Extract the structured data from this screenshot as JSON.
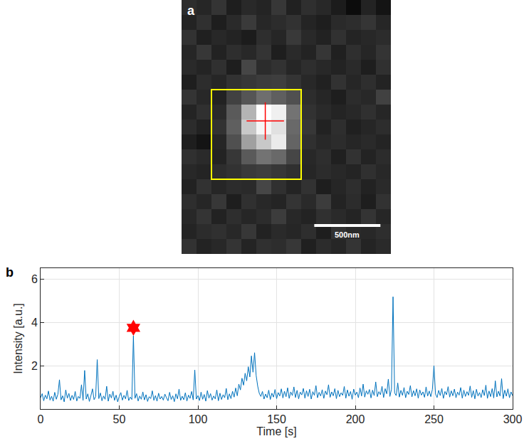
{
  "chart_data": [
    {
      "type": "heatmap",
      "panel": "a",
      "tick_labels": false,
      "zlim": [
        0,
        255
      ],
      "cells": [
        [
          45,
          38,
          52,
          30,
          41,
          36,
          55,
          33,
          47,
          40,
          28,
          12,
          35,
          20
        ],
        [
          35,
          48,
          30,
          42,
          58,
          39,
          44,
          50,
          36,
          30,
          42,
          45,
          53,
          38
        ],
        [
          50,
          32,
          40,
          35,
          28,
          46,
          38,
          57,
          41,
          34,
          49,
          36,
          40,
          44
        ],
        [
          38,
          55,
          34,
          46,
          40,
          52,
          30,
          42,
          35,
          54,
          32,
          47,
          38,
          52
        ],
        [
          42,
          36,
          48,
          30,
          70,
          44,
          50,
          38,
          46,
          40,
          35,
          42,
          30,
          48
        ],
        [
          30,
          45,
          38,
          50,
          55,
          60,
          62,
          52,
          40,
          33,
          50,
          38,
          46,
          35
        ],
        [
          52,
          40,
          34,
          65,
          85,
          110,
          95,
          80,
          45,
          38,
          30,
          44,
          40,
          65
        ],
        [
          36,
          48,
          42,
          90,
          180,
          255,
          240,
          115,
          50,
          42,
          36,
          40,
          48,
          38
        ],
        [
          44,
          34,
          50,
          95,
          200,
          245,
          225,
          105,
          55,
          34,
          46,
          32,
          38,
          45
        ],
        [
          30,
          20,
          38,
          80,
          160,
          200,
          235,
          100,
          48,
          40,
          44,
          38,
          42,
          36
        ],
        [
          48,
          42,
          35,
          55,
          90,
          115,
          105,
          70,
          40,
          46,
          32,
          50,
          35,
          44
        ],
        [
          40,
          36,
          45,
          50,
          58,
          62,
          55,
          48,
          38,
          44,
          40,
          36,
          48,
          40
        ],
        [
          34,
          50,
          38,
          44,
          42,
          70,
          48,
          36,
          50,
          30,
          38,
          46,
          34,
          42
        ],
        [
          46,
          38,
          55,
          30,
          48,
          40,
          36,
          52,
          42,
          60,
          35,
          44,
          30,
          50
        ],
        [
          40,
          52,
          34,
          46,
          38,
          44,
          60,
          40,
          35,
          48,
          42,
          36,
          52,
          38
        ],
        [
          36,
          44,
          48,
          40,
          55,
          34,
          42,
          38,
          46,
          30,
          50,
          42,
          40,
          46
        ],
        [
          50,
          35,
          40,
          52,
          36,
          48,
          45,
          55,
          32,
          44,
          38,
          52,
          36,
          42
        ]
      ],
      "roi": [
        1.5,
        7.5,
        5.5,
        11.5
      ],
      "localization": [
        5.1,
        7.6
      ],
      "pixel_size": 113,
      "scale_bar": {
        "value": 500,
        "label": "500nm"
      }
    },
    {
      "type": "line",
      "panel": "b",
      "x_label": "Time [s]",
      "y_label": "Intensity [a.u.]",
      "color": "#0072bd",
      "grid": true,
      "xlim": [
        0,
        300
      ],
      "xticks": [
        0,
        50,
        100,
        150,
        200,
        250,
        300
      ],
      "ylim": [
        0,
        6.5
      ],
      "yticks": [
        2,
        4,
        6
      ],
      "x": [
        0,
        1,
        2,
        3,
        4,
        5,
        6,
        7,
        8,
        9,
        10,
        11,
        12,
        13,
        14,
        15,
        16,
        17,
        18,
        19,
        20,
        21,
        22,
        23,
        24,
        25,
        26,
        27,
        28,
        29,
        30,
        31,
        32,
        33,
        34,
        35,
        36,
        37,
        38,
        39,
        40,
        41,
        42,
        43,
        44,
        45,
        46,
        47,
        48,
        49,
        50,
        51,
        52,
        53,
        54,
        55,
        56,
        57,
        58,
        59,
        60,
        61,
        62,
        63,
        64,
        65,
        66,
        67,
        68,
        69,
        70,
        71,
        72,
        73,
        74,
        75,
        76,
        77,
        78,
        79,
        80,
        81,
        82,
        83,
        84,
        85,
        86,
        87,
        88,
        89,
        90,
        91,
        92,
        93,
        94,
        95,
        96,
        97,
        98,
        99,
        100,
        101,
        102,
        103,
        104,
        105,
        106,
        107,
        108,
        109,
        110,
        111,
        112,
        113,
        114,
        115,
        116,
        117,
        118,
        119,
        120,
        121,
        122,
        123,
        124,
        125,
        126,
        127,
        128,
        129,
        130,
        131,
        132,
        133,
        134,
        135,
        136,
        137,
        138,
        139,
        140,
        141,
        142,
        143,
        144,
        145,
        146,
        147,
        148,
        149,
        150,
        151,
        152,
        153,
        154,
        155,
        156,
        157,
        158,
        159,
        160,
        161,
        162,
        163,
        164,
        165,
        166,
        167,
        168,
        169,
        170,
        171,
        172,
        173,
        174,
        175,
        176,
        177,
        178,
        179,
        180,
        181,
        182,
        183,
        184,
        185,
        186,
        187,
        188,
        189,
        190,
        191,
        192,
        193,
        194,
        195,
        196,
        197,
        198,
        199,
        200,
        201,
        202,
        203,
        204,
        205,
        206,
        207,
        208,
        209,
        210,
        211,
        212,
        213,
        214,
        215,
        216,
        217,
        218,
        219,
        220,
        221,
        222,
        223,
        224,
        225,
        226,
        227,
        228,
        229,
        230,
        231,
        232,
        233,
        234,
        235,
        236,
        237,
        238,
        239,
        240,
        241,
        242,
        243,
        244,
        245,
        246,
        247,
        248,
        249,
        250,
        251,
        252,
        253,
        254,
        255,
        256,
        257,
        258,
        259,
        260,
        261,
        262,
        263,
        264,
        265,
        266,
        267,
        268,
        269,
        270,
        271,
        272,
        273,
        274,
        275,
        276,
        277,
        278,
        279,
        280,
        281,
        282,
        283,
        284,
        285,
        286,
        287,
        288,
        289,
        290,
        291,
        292,
        293,
        294,
        295,
        296,
        297,
        298,
        299,
        300
      ],
      "values": [
        0.52,
        0.71,
        0.38,
        0.64,
        0.47,
        0.83,
        0.41,
        0.59,
        0.36,
        0.77,
        0.45,
        0.68,
        1.35,
        0.42,
        0.61,
        0.33,
        0.88,
        0.5,
        0.72,
        0.39,
        0.63,
        0.44,
        0.81,
        0.37,
        0.58,
        0.49,
        1.12,
        0.4,
        1.78,
        0.46,
        0.7,
        0.35,
        0.62,
        0.93,
        0.43,
        0.57,
        2.28,
        0.48,
        0.74,
        0.38,
        0.6,
        0.45,
        1.05,
        0.36,
        0.69,
        0.51,
        0.82,
        0.4,
        0.64,
        0.33,
        0.58,
        0.76,
        0.41,
        0.63,
        0.47,
        0.86,
        0.39,
        0.55,
        0.44,
        3.38,
        0.49,
        0.71,
        0.37,
        0.6,
        0.45,
        0.79,
        0.42,
        0.66,
        0.35,
        0.57,
        0.48,
        0.84,
        0.4,
        0.62,
        0.36,
        0.73,
        0.46,
        0.58,
        0.41,
        0.69,
        0.52,
        0.38,
        0.77,
        0.44,
        0.61,
        0.34,
        0.7,
        0.47,
        0.92,
        0.4,
        0.59,
        0.43,
        0.75,
        0.37,
        0.64,
        0.49,
        0.81,
        0.42,
        1.8,
        0.46,
        0.62,
        0.39,
        0.78,
        0.45,
        0.67,
        0.36,
        0.85,
        0.5,
        0.71,
        0.41,
        0.6,
        0.47,
        0.88,
        0.38,
        0.73,
        0.44,
        0.66,
        0.52,
        0.95,
        0.43,
        0.7,
        0.48,
        0.82,
        0.55,
        0.97,
        0.61,
        1.15,
        0.88,
        1.42,
        1.1,
        1.65,
        1.3,
        1.95,
        1.48,
        2.45,
        1.7,
        2.6,
        1.55,
        1.05,
        0.72,
        0.58,
        0.81,
        0.46,
        0.69,
        0.52,
        0.87,
        0.44,
        0.73,
        0.55,
        0.9,
        0.48,
        0.76,
        0.6,
        0.93,
        0.51,
        0.82,
        0.57,
        0.98,
        0.49,
        0.79,
        0.62,
        1.02,
        0.53,
        0.86,
        0.47,
        0.78,
        0.65,
        0.95,
        0.5,
        0.84,
        0.58,
        0.91,
        0.46,
        0.8,
        0.63,
        1.08,
        0.52,
        0.77,
        0.6,
        0.89,
        0.49,
        0.83,
        0.66,
        1.12,
        0.54,
        0.79,
        0.61,
        0.94,
        0.48,
        0.86,
        0.57,
        0.75,
        0.63,
        1.04,
        0.5,
        0.88,
        0.59,
        0.81,
        0.45,
        0.92,
        0.64,
        0.78,
        0.52,
        0.97,
        0.6,
        1.15,
        0.55,
        0.84,
        0.68,
        0.9,
        0.51,
        0.87,
        0.62,
        1.25,
        0.57,
        0.8,
        0.66,
        1.05,
        0.53,
        0.94,
        0.7,
        1.38,
        0.58,
        0.91,
        5.18,
        0.74,
        0.62,
        1.2,
        0.55,
        0.86,
        0.63,
        0.99,
        0.52,
        0.82,
        0.67,
        1.08,
        0.56,
        0.85,
        0.61,
        0.93,
        0.5,
        0.88,
        0.64,
        0.79,
        0.54,
        1.02,
        0.6,
        0.83,
        0.57,
        0.9,
        2.0,
        0.69,
        0.53,
        0.86,
        0.62,
        0.95,
        0.49,
        0.81,
        0.66,
        1.03,
        0.55,
        0.84,
        0.61,
        0.92,
        0.52,
        0.78,
        0.64,
        0.99,
        0.5,
        0.87,
        0.58,
        0.8,
        0.63,
        1.06,
        0.54,
        0.85,
        0.47,
        0.91,
        0.6,
        0.76,
        0.53,
        0.89,
        0.62,
        1.1,
        0.49,
        0.83,
        0.57,
        0.94,
        0.51,
        1.3,
        0.56,
        0.82,
        0.6,
        1.4,
        0.48,
        0.87,
        0.59,
        0.93,
        0.52,
        0.79,
        0.61
      ],
      "highlight": {
        "x": [
          59
        ],
        "y": [
          3.75
        ],
        "marker": "hexagram",
        "color": "#ff0000"
      }
    }
  ]
}
